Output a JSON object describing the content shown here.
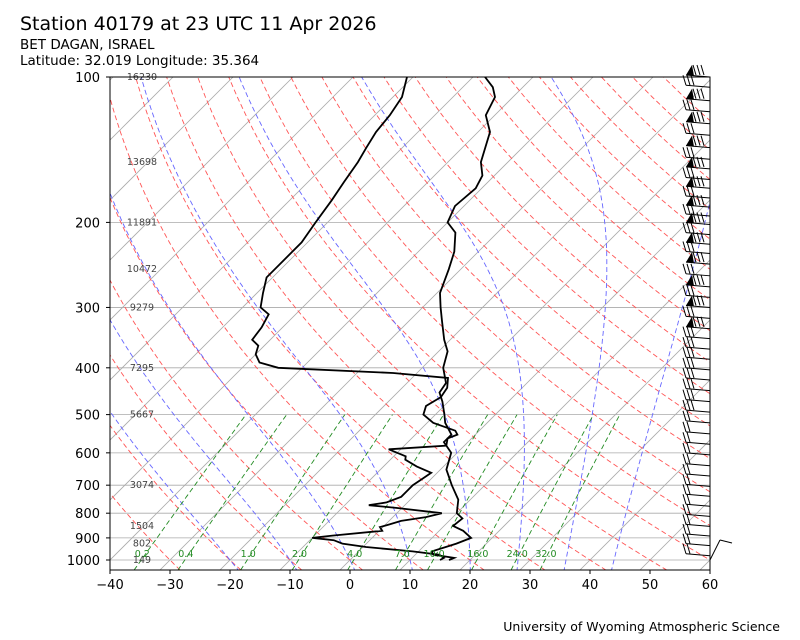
{
  "header": {
    "title": "Station 40179 at 23 UTC 11 Apr 2026",
    "station": "BET DAGAN, ISRAEL",
    "location": "Latitude: 32.019 Longitude: 35.364"
  },
  "footer": {
    "credit": "University of Wyoming Atmospheric Science"
  },
  "colors": {
    "temperature": "#000000",
    "dewpoint": "#000000",
    "dry_adiabat": "#ff5555",
    "moist_adiabat": "#6666ff",
    "mixing_ratio": "#228B22",
    "isotherm": "#aaaaaa",
    "grid": "#aaaaaa"
  },
  "chart_data": {
    "type": "line",
    "title": "Station 40179 at 23 UTC 11 Apr 2026",
    "xlabel": "",
    "ylabel": "",
    "x_scale": "skew-t (temperature °C)",
    "y_scale": "log pressure (hPa), inverted",
    "xlim": [
      -40,
      60
    ],
    "ylim": [
      1000,
      100
    ],
    "x_ticks": [
      "−40",
      "−30",
      "−20",
      "−10",
      "0",
      "10",
      "20",
      "30",
      "40",
      "50",
      "60"
    ],
    "y_ticks": [
      "100",
      "200",
      "300",
      "400",
      "500",
      "600",
      "700",
      "800",
      "900",
      "1000"
    ],
    "grid": true,
    "height_labels": [
      {
        "p": 100,
        "text": "16230"
      },
      {
        "p": 150,
        "text": "13698"
      },
      {
        "p": 200,
        "text": "11891"
      },
      {
        "p": 250,
        "text": "10472"
      },
      {
        "p": 300,
        "text": "9279"
      },
      {
        "p": 400,
        "text": "7295"
      },
      {
        "p": 500,
        "text": "5667"
      },
      {
        "p": 700,
        "text": "3074"
      },
      {
        "p": 850,
        "text": "1504"
      },
      {
        "p": 925,
        "text": "802"
      },
      {
        "p": 1000,
        "text": "149"
      }
    ],
    "mixing_ratio_labels": [
      "0.2",
      "0.4",
      "1.0",
      "2.0",
      "4.0",
      "7.0",
      "10.0",
      "16.0",
      "24.0",
      "32.0"
    ],
    "series": [
      {
        "name": "Temperature",
        "points": [
          [
            1000,
            16.5
          ],
          [
            990,
            17.0
          ],
          [
            975,
            13.0
          ],
          [
            960,
            12.2
          ],
          [
            940,
            13.8
          ],
          [
            925,
            15.0
          ],
          [
            900,
            16.5
          ],
          [
            870,
            14.0
          ],
          [
            850,
            11.5
          ],
          [
            820,
            11.8
          ],
          [
            800,
            10.0
          ],
          [
            750,
            8.0
          ],
          [
            700,
            4.5
          ],
          [
            650,
            1.0
          ],
          [
            600,
            -1.0
          ],
          [
            570,
            -4.0
          ],
          [
            550,
            -4.0
          ],
          [
            520,
            -7.0
          ],
          [
            500,
            -8.5
          ],
          [
            470,
            -11.0
          ],
          [
            450,
            -13.0
          ],
          [
            430,
            -13.5
          ],
          [
            400,
            -16.5
          ],
          [
            370,
            -18.5
          ],
          [
            350,
            -21.0
          ],
          [
            320,
            -24.5
          ],
          [
            300,
            -27.0
          ],
          [
            280,
            -29.5
          ],
          [
            250,
            -32.0
          ],
          [
            230,
            -34.0
          ],
          [
            210,
            -37.0
          ],
          [
            200,
            -40.0
          ],
          [
            185,
            -41.5
          ],
          [
            170,
            -41.0
          ],
          [
            160,
            -42.0
          ],
          [
            150,
            -44.5
          ],
          [
            130,
            -48.0
          ],
          [
            120,
            -51.5
          ],
          [
            110,
            -53.0
          ],
          [
            105,
            -55.0
          ],
          [
            100,
            -58.0
          ]
        ]
      },
      {
        "name": "Dewpoint",
        "points": [
          [
            1000,
            15.0
          ],
          [
            990,
            15.3
          ],
          [
            975,
            14.0
          ],
          [
            960,
            9.0
          ],
          [
            940,
            0.5
          ],
          [
            925,
            -4.0
          ],
          [
            910,
            -6.0
          ],
          [
            900,
            -10.0
          ],
          [
            890,
            -7.0
          ],
          [
            870,
            0.5
          ],
          [
            855,
            -0.5
          ],
          [
            845,
            0.5
          ],
          [
            830,
            2.0
          ],
          [
            815,
            5.5
          ],
          [
            800,
            7.5
          ],
          [
            780,
            -1.0
          ],
          [
            770,
            -6.0
          ],
          [
            760,
            -3.5
          ],
          [
            740,
            -2.0
          ],
          [
            720,
            -2.0
          ],
          [
            700,
            -2.0
          ],
          [
            680,
            -1.5
          ],
          [
            660,
            -1.0
          ],
          [
            640,
            -4.5
          ],
          [
            620,
            -7.5
          ],
          [
            610,
            -8.0
          ],
          [
            600,
            -10.0
          ],
          [
            590,
            -12.0
          ],
          [
            580,
            -3.0
          ],
          [
            560,
            -4.0
          ],
          [
            550,
            -3.0
          ],
          [
            540,
            -4.0
          ],
          [
            520,
            -9.0
          ],
          [
            500,
            -12.0
          ],
          [
            480,
            -13.0
          ],
          [
            460,
            -12.0
          ],
          [
            440,
            -12.5
          ],
          [
            420,
            -14.0
          ],
          [
            410,
            -24.0
          ],
          [
            400,
            -44.0
          ],
          [
            390,
            -48.0
          ],
          [
            375,
            -50.0
          ],
          [
            360,
            -51.0
          ],
          [
            350,
            -53.0
          ],
          [
            330,
            -53.5
          ],
          [
            310,
            -54.5
          ],
          [
            300,
            -57.0
          ],
          [
            280,
            -59.0
          ],
          [
            260,
            -61.0
          ],
          [
            240,
            -61.0
          ],
          [
            220,
            -61.0
          ],
          [
            200,
            -62.0
          ],
          [
            180,
            -63.0
          ],
          [
            165,
            -64.0
          ],
          [
            150,
            -65.0
          ],
          [
            140,
            -66.0
          ],
          [
            130,
            -67.0
          ],
          [
            120,
            -67.5
          ],
          [
            110,
            -68.5
          ],
          [
            100,
            -71.0
          ]
        ]
      }
    ],
    "wind_barbs": "right margin, 1000–100 hPa"
  }
}
